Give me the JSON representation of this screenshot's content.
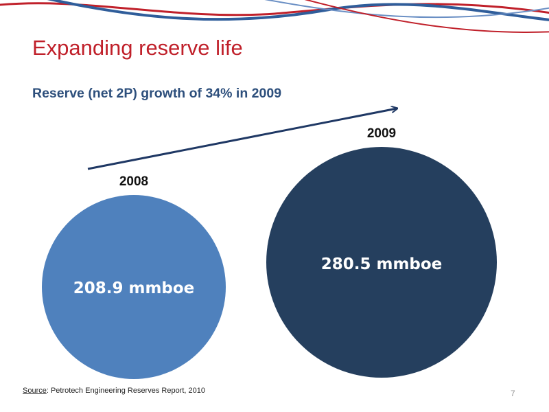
{
  "slide": {
    "title": "Expanding reserve life",
    "subtitle": "Reserve (net 2P) growth of 34% in 2009",
    "source_label": "Source",
    "source_text": ": Petrotech Engineering Reserves Report, 2010",
    "page_number": "7"
  },
  "colors": {
    "title": "#c0202a",
    "subtitle": "#2d4f7c",
    "wave_red": "#c0202a",
    "wave_blue": "#2f5d9a",
    "arrow": "#1f3864"
  },
  "chart_data": {
    "type": "bubble",
    "unit": "mmboe",
    "categories": [
      "2008",
      "2009"
    ],
    "values": [
      208.9,
      280.5
    ],
    "value_labels": [
      "208.9 mmboe",
      "280.5 mmboe"
    ],
    "colors": [
      "#4f81bd",
      "#253f5e"
    ],
    "growth_arrow": true
  }
}
